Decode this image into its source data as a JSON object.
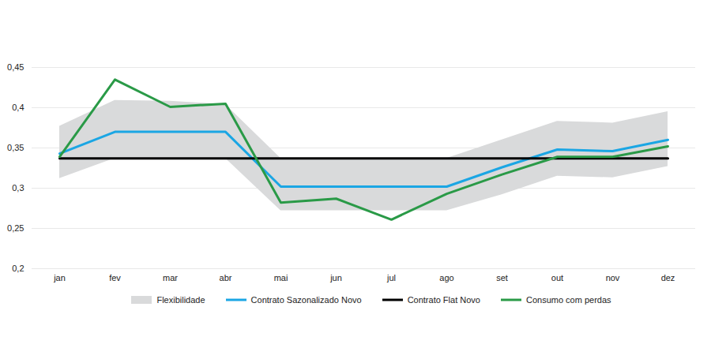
{
  "chart_data": {
    "type": "line",
    "categories": [
      "jan",
      "fev",
      "mar",
      "abr",
      "mai",
      "jun",
      "jul",
      "ago",
      "set",
      "out",
      "nov",
      "dez"
    ],
    "series": [
      {
        "name": "Flexibilidade",
        "type": "area",
        "color": "#d9dadb",
        "low": [
          0.312,
          0.337,
          0.337,
          0.337,
          0.272,
          0.272,
          0.272,
          0.272,
          0.292,
          0.315,
          0.313,
          0.327
        ],
        "high": [
          0.377,
          0.409,
          0.408,
          0.404,
          0.337,
          0.337,
          0.337,
          0.337,
          0.36,
          0.383,
          0.381,
          0.395
        ]
      },
      {
        "name": "Contrato Sazonalizado Novo",
        "type": "line",
        "color": "#1ba6e4",
        "values": [
          0.343,
          0.37,
          0.37,
          0.37,
          0.302,
          0.302,
          0.302,
          0.302,
          0.326,
          0.348,
          0.346,
          0.36
        ]
      },
      {
        "name": "Contrato Flat Novo",
        "type": "line",
        "color": "#000000",
        "values": [
          0.337,
          0.337,
          0.337,
          0.337,
          0.337,
          0.337,
          0.337,
          0.337,
          0.337,
          0.337,
          0.337,
          0.337
        ]
      },
      {
        "name": "Consumo com perdas",
        "type": "line",
        "color": "#2a9a47",
        "values": [
          0.339,
          0.435,
          0.401,
          0.405,
          0.282,
          0.287,
          0.261,
          0.293,
          0.317,
          0.339,
          0.339,
          0.352
        ]
      }
    ],
    "ylim": [
      0.2,
      0.45
    ],
    "yticks": [
      {
        "value": 0.2,
        "label": "0,2"
      },
      {
        "value": 0.25,
        "label": "0,25"
      },
      {
        "value": 0.3,
        "label": "0,3"
      },
      {
        "value": 0.35,
        "label": "0,35"
      },
      {
        "value": 0.4,
        "label": "0,4"
      },
      {
        "value": 0.45,
        "label": "0,45"
      }
    ],
    "grid": true,
    "legend": "bottom"
  }
}
